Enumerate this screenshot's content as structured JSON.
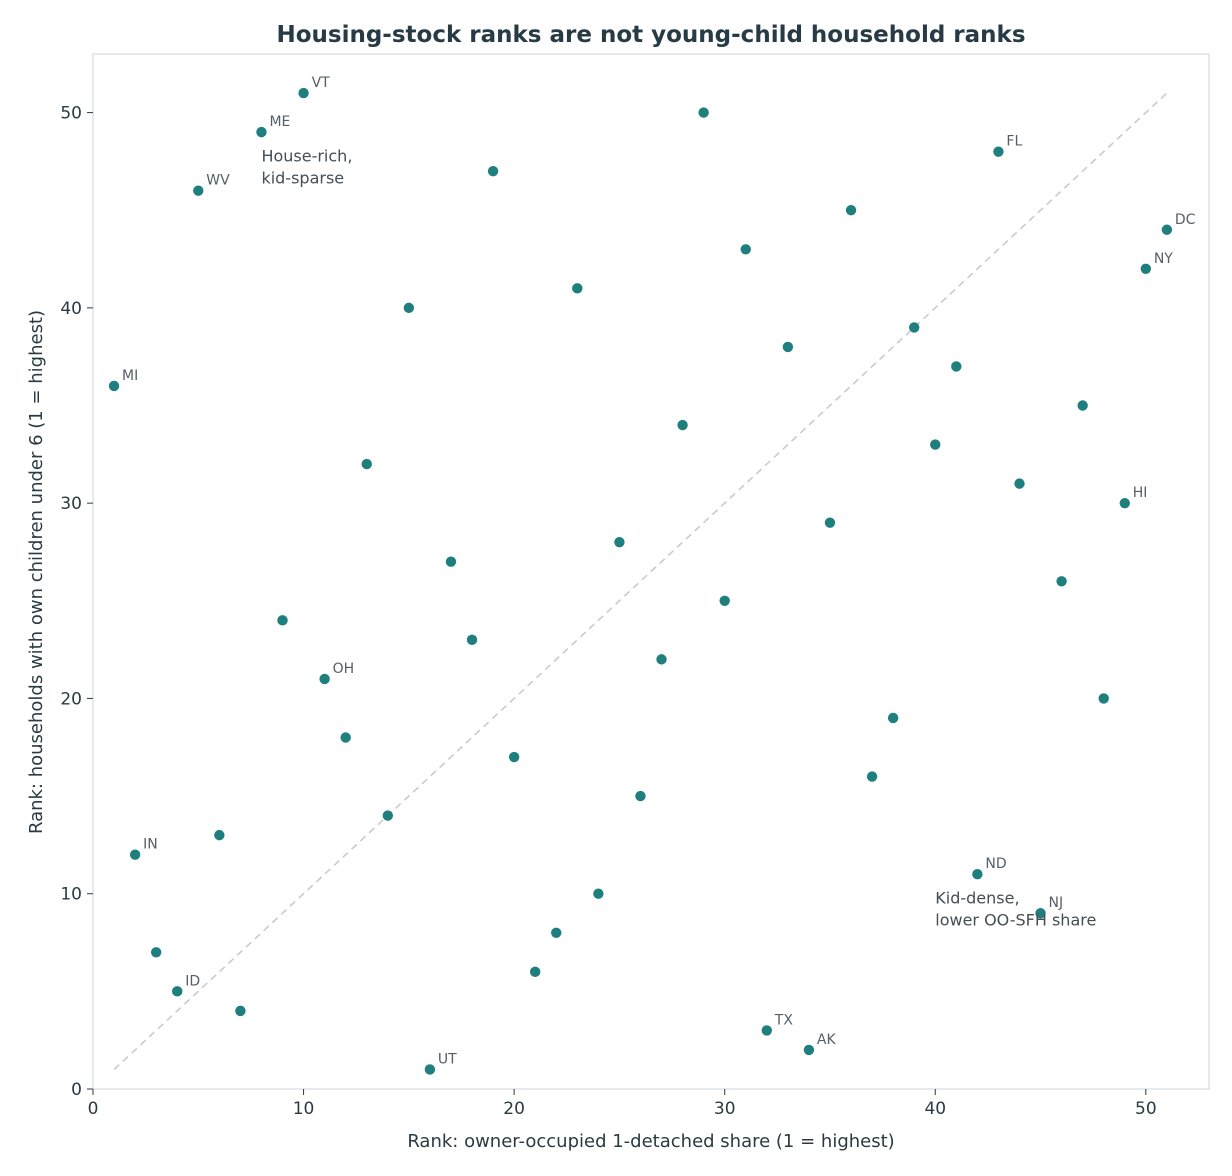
{
  "chart_data": {
    "type": "scatter",
    "title": "Housing-stock ranks are not young-child household ranks",
    "xlabel": "Rank: owner-occupied 1-detached share (1 = highest)",
    "ylabel": "Rank: households with own children under 6 (1 = highest)",
    "xlim": [
      0,
      53
    ],
    "ylim": [
      0,
      53
    ],
    "xticks": [
      0,
      10,
      20,
      30,
      40,
      50
    ],
    "yticks": [
      0,
      10,
      20,
      30,
      40,
      50
    ],
    "grid": false,
    "marker_color": "#1f7f7f",
    "reference_line": {
      "from": [
        1,
        1
      ],
      "to": [
        51,
        51
      ],
      "style": "dashed",
      "color": "#c8c8c8"
    },
    "points": [
      {
        "x": 1,
        "y": 36,
        "label": "MI"
      },
      {
        "x": 2,
        "y": 12,
        "label": "IN"
      },
      {
        "x": 3,
        "y": 7,
        "label": ""
      },
      {
        "x": 4,
        "y": 5,
        "label": "ID"
      },
      {
        "x": 5,
        "y": 46,
        "label": "WV"
      },
      {
        "x": 6,
        "y": 13,
        "label": ""
      },
      {
        "x": 7,
        "y": 4,
        "label": ""
      },
      {
        "x": 8,
        "y": 49,
        "label": "ME"
      },
      {
        "x": 9,
        "y": 24,
        "label": ""
      },
      {
        "x": 10,
        "y": 51,
        "label": "VT"
      },
      {
        "x": 11,
        "y": 21,
        "label": "OH"
      },
      {
        "x": 12,
        "y": 18,
        "label": ""
      },
      {
        "x": 13,
        "y": 32,
        "label": ""
      },
      {
        "x": 14,
        "y": 14,
        "label": ""
      },
      {
        "x": 15,
        "y": 40,
        "label": ""
      },
      {
        "x": 16,
        "y": 1,
        "label": "UT"
      },
      {
        "x": 17,
        "y": 27,
        "label": ""
      },
      {
        "x": 18,
        "y": 23,
        "label": ""
      },
      {
        "x": 19,
        "y": 47,
        "label": ""
      },
      {
        "x": 20,
        "y": 17,
        "label": ""
      },
      {
        "x": 21,
        "y": 6,
        "label": ""
      },
      {
        "x": 22,
        "y": 8,
        "label": ""
      },
      {
        "x": 23,
        "y": 41,
        "label": ""
      },
      {
        "x": 24,
        "y": 10,
        "label": ""
      },
      {
        "x": 25,
        "y": 28,
        "label": ""
      },
      {
        "x": 26,
        "y": 15,
        "label": ""
      },
      {
        "x": 27,
        "y": 22,
        "label": ""
      },
      {
        "x": 28,
        "y": 34,
        "label": ""
      },
      {
        "x": 29,
        "y": 50,
        "label": ""
      },
      {
        "x": 30,
        "y": 25,
        "label": ""
      },
      {
        "x": 31,
        "y": 43,
        "label": ""
      },
      {
        "x": 32,
        "y": 3,
        "label": "TX"
      },
      {
        "x": 33,
        "y": 38,
        "label": ""
      },
      {
        "x": 34,
        "y": 2,
        "label": "AK"
      },
      {
        "x": 35,
        "y": 29,
        "label": ""
      },
      {
        "x": 36,
        "y": 45,
        "label": ""
      },
      {
        "x": 37,
        "y": 16,
        "label": ""
      },
      {
        "x": 38,
        "y": 19,
        "label": ""
      },
      {
        "x": 39,
        "y": 39,
        "label": ""
      },
      {
        "x": 40,
        "y": 33,
        "label": ""
      },
      {
        "x": 41,
        "y": 37,
        "label": ""
      },
      {
        "x": 42,
        "y": 11,
        "label": "ND"
      },
      {
        "x": 43,
        "y": 48,
        "label": "FL"
      },
      {
        "x": 44,
        "y": 31,
        "label": ""
      },
      {
        "x": 45,
        "y": 9,
        "label": "NJ"
      },
      {
        "x": 46,
        "y": 26,
        "label": ""
      },
      {
        "x": 47,
        "y": 35,
        "label": ""
      },
      {
        "x": 48,
        "y": 20,
        "label": ""
      },
      {
        "x": 49,
        "y": 30,
        "label": "HI"
      },
      {
        "x": 50,
        "y": 42,
        "label": "NY"
      },
      {
        "x": 51,
        "y": 44,
        "label": "DC"
      }
    ],
    "annotations": [
      {
        "x": 8,
        "y": 47.5,
        "lines": [
          "House-rich,",
          "kid-sparse"
        ]
      },
      {
        "x": 40,
        "y": 9.5,
        "lines": [
          "Kid-dense,",
          "lower OO-SFH share"
        ]
      }
    ]
  }
}
